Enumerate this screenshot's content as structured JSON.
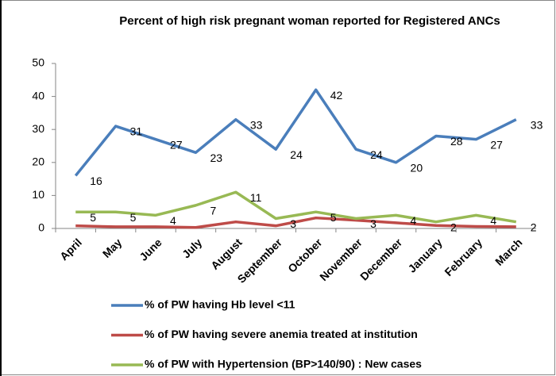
{
  "chart_data": {
    "type": "line",
    "title": "Percent of high risk pregnant woman reported for Registered ANCs",
    "categories": [
      "April",
      "May",
      "June",
      "July",
      "August",
      "September",
      "October",
      "November",
      "December",
      "January",
      "February",
      "March"
    ],
    "series": [
      {
        "name": "% of PW having Hb level <11",
        "color": "#4a7ebb",
        "labels": true,
        "values": [
          16,
          31,
          27,
          23,
          33,
          24,
          42,
          24,
          20,
          28,
          27,
          33
        ]
      },
      {
        "name": "% of PW having severe anemia treated at institution",
        "color": "#be4b48",
        "labels": false,
        "values": [
          0.8,
          0.5,
          0.5,
          0.3,
          2,
          0.8,
          3.2,
          2.5,
          1.7,
          0.9,
          0.6,
          0.5
        ]
      },
      {
        "name": "% of PW with Hypertension (BP>140/90) : New cases",
        "color": "#98b954",
        "labels": true,
        "values": [
          5,
          5,
          4,
          7,
          11,
          3,
          5,
          3,
          4,
          2,
          4,
          2
        ]
      }
    ],
    "ylim": [
      0,
      50
    ],
    "yticks": [
      0,
      10,
      20,
      30,
      40,
      50
    ],
    "grid": false
  }
}
